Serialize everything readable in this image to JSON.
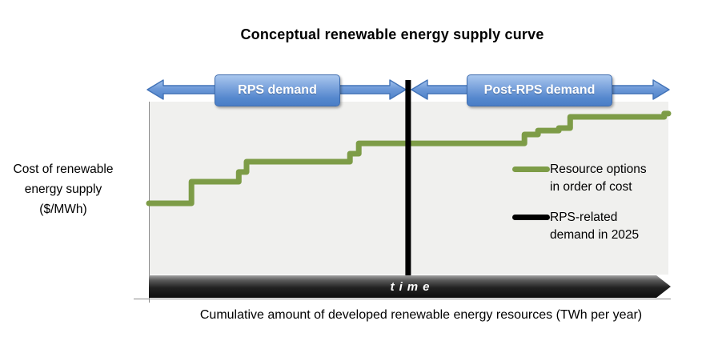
{
  "title": "Conceptual renewable energy supply curve",
  "y_axis_label": "Cost of renewable\nenergy supply\n($/MWh)",
  "x_axis_label": "Cumulative amount of developed renewable energy resources (TWh per year)",
  "time_label": "time",
  "demand_arrows": {
    "rps_label": "RPS demand",
    "post_rps_label": "Post-RPS demand"
  },
  "legend": {
    "items": [
      {
        "name": "resource-options",
        "color": "#7d9c47",
        "label": "Resource options\nin order of cost"
      },
      {
        "name": "rps-demand-2025",
        "color": "#000000",
        "label": "RPS-related\ndemand in 2025"
      }
    ]
  },
  "colors": {
    "plot_background": "#f0f0ee",
    "curve_green": "#7d9c47",
    "demand_line_black": "#000000",
    "arrow_blue_top": "#a6c4ec",
    "arrow_blue_bottom": "#4d82c8",
    "arrow_border_blue": "#4273b8",
    "axis_gray": "#8c8c8c"
  },
  "chart_data": {
    "type": "line",
    "line_style": "step",
    "title": "Conceptual renewable energy supply curve",
    "xlabel": "Cumulative amount of developed renewable energy resources (TWh per year)",
    "ylabel": "Cost of renewable energy supply ($/MWh)",
    "axes_numeric": false,
    "note": "Conceptual diagram: axes carry no numeric ticks; coordinates are percent of axis span (x: 0-100 left-to-right, y: 0-100 bottom-to-top)",
    "x_range_pct": [
      0,
      100
    ],
    "y_range_pct": [
      0,
      100
    ],
    "grid": false,
    "legend_position": "inside-right",
    "series": [
      {
        "name": "Resource options in order of cost",
        "color": "#7d9c47",
        "points_pct": [
          [
            0,
            41.2
          ],
          [
            8.2,
            41.2
          ],
          [
            8.2,
            53.7
          ],
          [
            17.3,
            53.7
          ],
          [
            17.3,
            59.3
          ],
          [
            18.8,
            59.3
          ],
          [
            18.8,
            65.3
          ],
          [
            38.7,
            65.3
          ],
          [
            38.7,
            69.9
          ],
          [
            40.4,
            69.9
          ],
          [
            40.4,
            75.9
          ],
          [
            72.3,
            75.9
          ],
          [
            72.3,
            81.0
          ],
          [
            74.9,
            81.0
          ],
          [
            74.9,
            83.3
          ],
          [
            78.9,
            83.3
          ],
          [
            78.9,
            84.7
          ],
          [
            81.1,
            84.7
          ],
          [
            81.1,
            91.2
          ],
          [
            99.2,
            91.2
          ],
          [
            99.2,
            93.1
          ],
          [
            100,
            93.1
          ]
        ]
      }
    ],
    "vertical_marker": {
      "name": "RPS-related demand in 2025",
      "color": "#000000",
      "x_pct": 49.9
    },
    "regions": [
      {
        "label": "RPS demand",
        "x_start_pct": 0,
        "x_end_pct": 49.9
      },
      {
        "label": "Post-RPS demand",
        "x_start_pct": 50.5,
        "x_end_pct": 100
      }
    ],
    "time_axis_label": "time"
  }
}
